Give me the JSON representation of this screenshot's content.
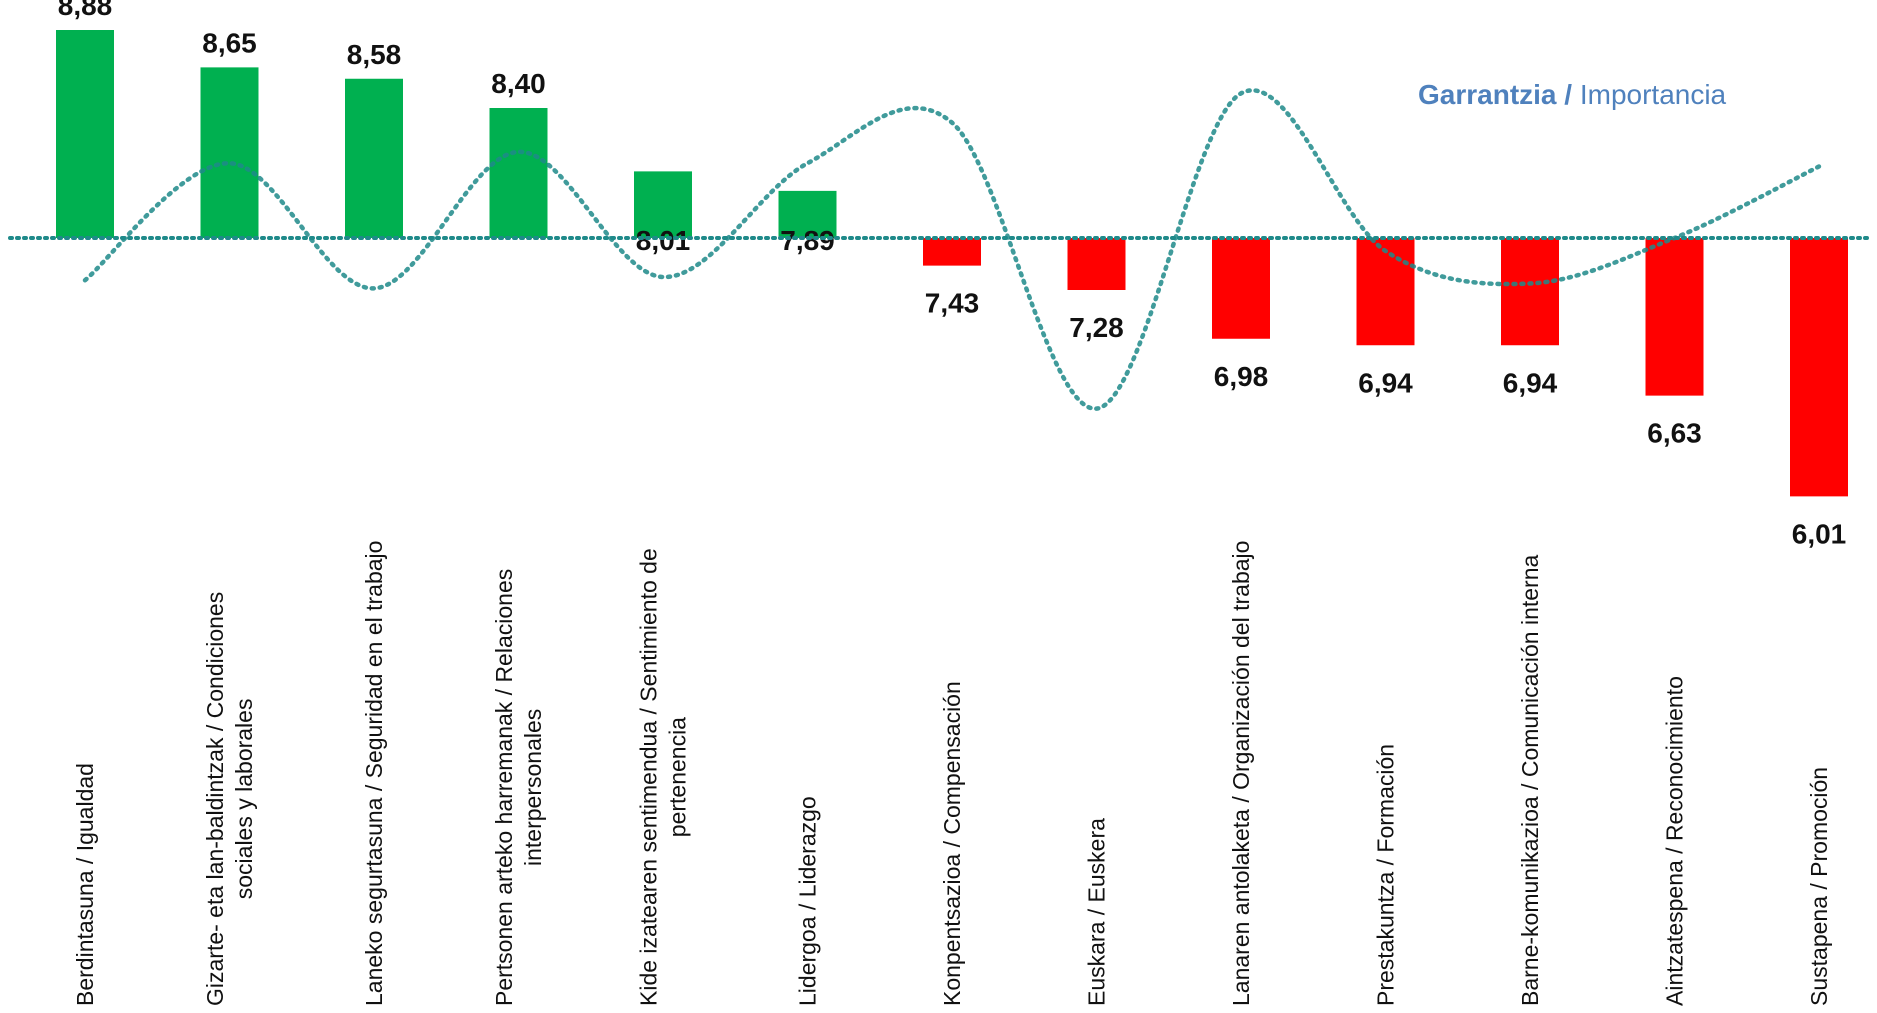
{
  "legend": {
    "bold_part": "Garrantzia /",
    "light_part": " Importancia"
  },
  "colors": {
    "positive": "#00B050",
    "negative": "#FF0000",
    "line": "#1F8A8A",
    "legend": "#4F81BD"
  },
  "chart_data": {
    "type": "bar",
    "baseline": 7.6,
    "categories": [
      [
        "Berdintasuna / Igualdad"
      ],
      [
        "Gizarte- eta lan-baldintzak / Condiciones",
        "sociales y laborales"
      ],
      [
        "Laneko segurtasuna / Seguridad en el trabajo"
      ],
      [
        "Pertsonen arteko harremanak / Relaciones",
        "interpersonales"
      ],
      [
        "Kide izatearen sentimendua / Sentimiento de",
        "pertenencia"
      ],
      [
        "Lidergoa / Liderazgo"
      ],
      [
        "Konpentsazioa / Compensación"
      ],
      [
        "Euskara / Euskera"
      ],
      [
        "Lanaren antolaketa / Organización del trabajo"
      ],
      [
        "Prestakuntza / Formación"
      ],
      [
        "Barne-komunikazioa / Comunicación interna"
      ],
      [
        "Aintzatespena / Reconocimiento"
      ],
      [
        "Sustapena / Promoción"
      ]
    ],
    "values": [
      8.88,
      8.65,
      8.58,
      8.4,
      8.01,
      7.89,
      7.43,
      7.28,
      6.98,
      6.94,
      6.94,
      6.63,
      6.01
    ],
    "labels": [
      "8,88",
      "8,65",
      "8,58",
      "8,40",
      "8,01",
      "7,89",
      "7,43",
      "7,28",
      "6,98",
      "6,94",
      "6,94",
      "6,63",
      "6,01"
    ],
    "series": [
      {
        "name": "Garrantzia / Importancia",
        "values": [
          7.34,
          8.06,
          7.29,
          8.13,
          7.36,
          8.06,
          8.31,
          6.55,
          8.49,
          7.52,
          7.32,
          7.6,
          8.04
        ]
      }
    ]
  }
}
